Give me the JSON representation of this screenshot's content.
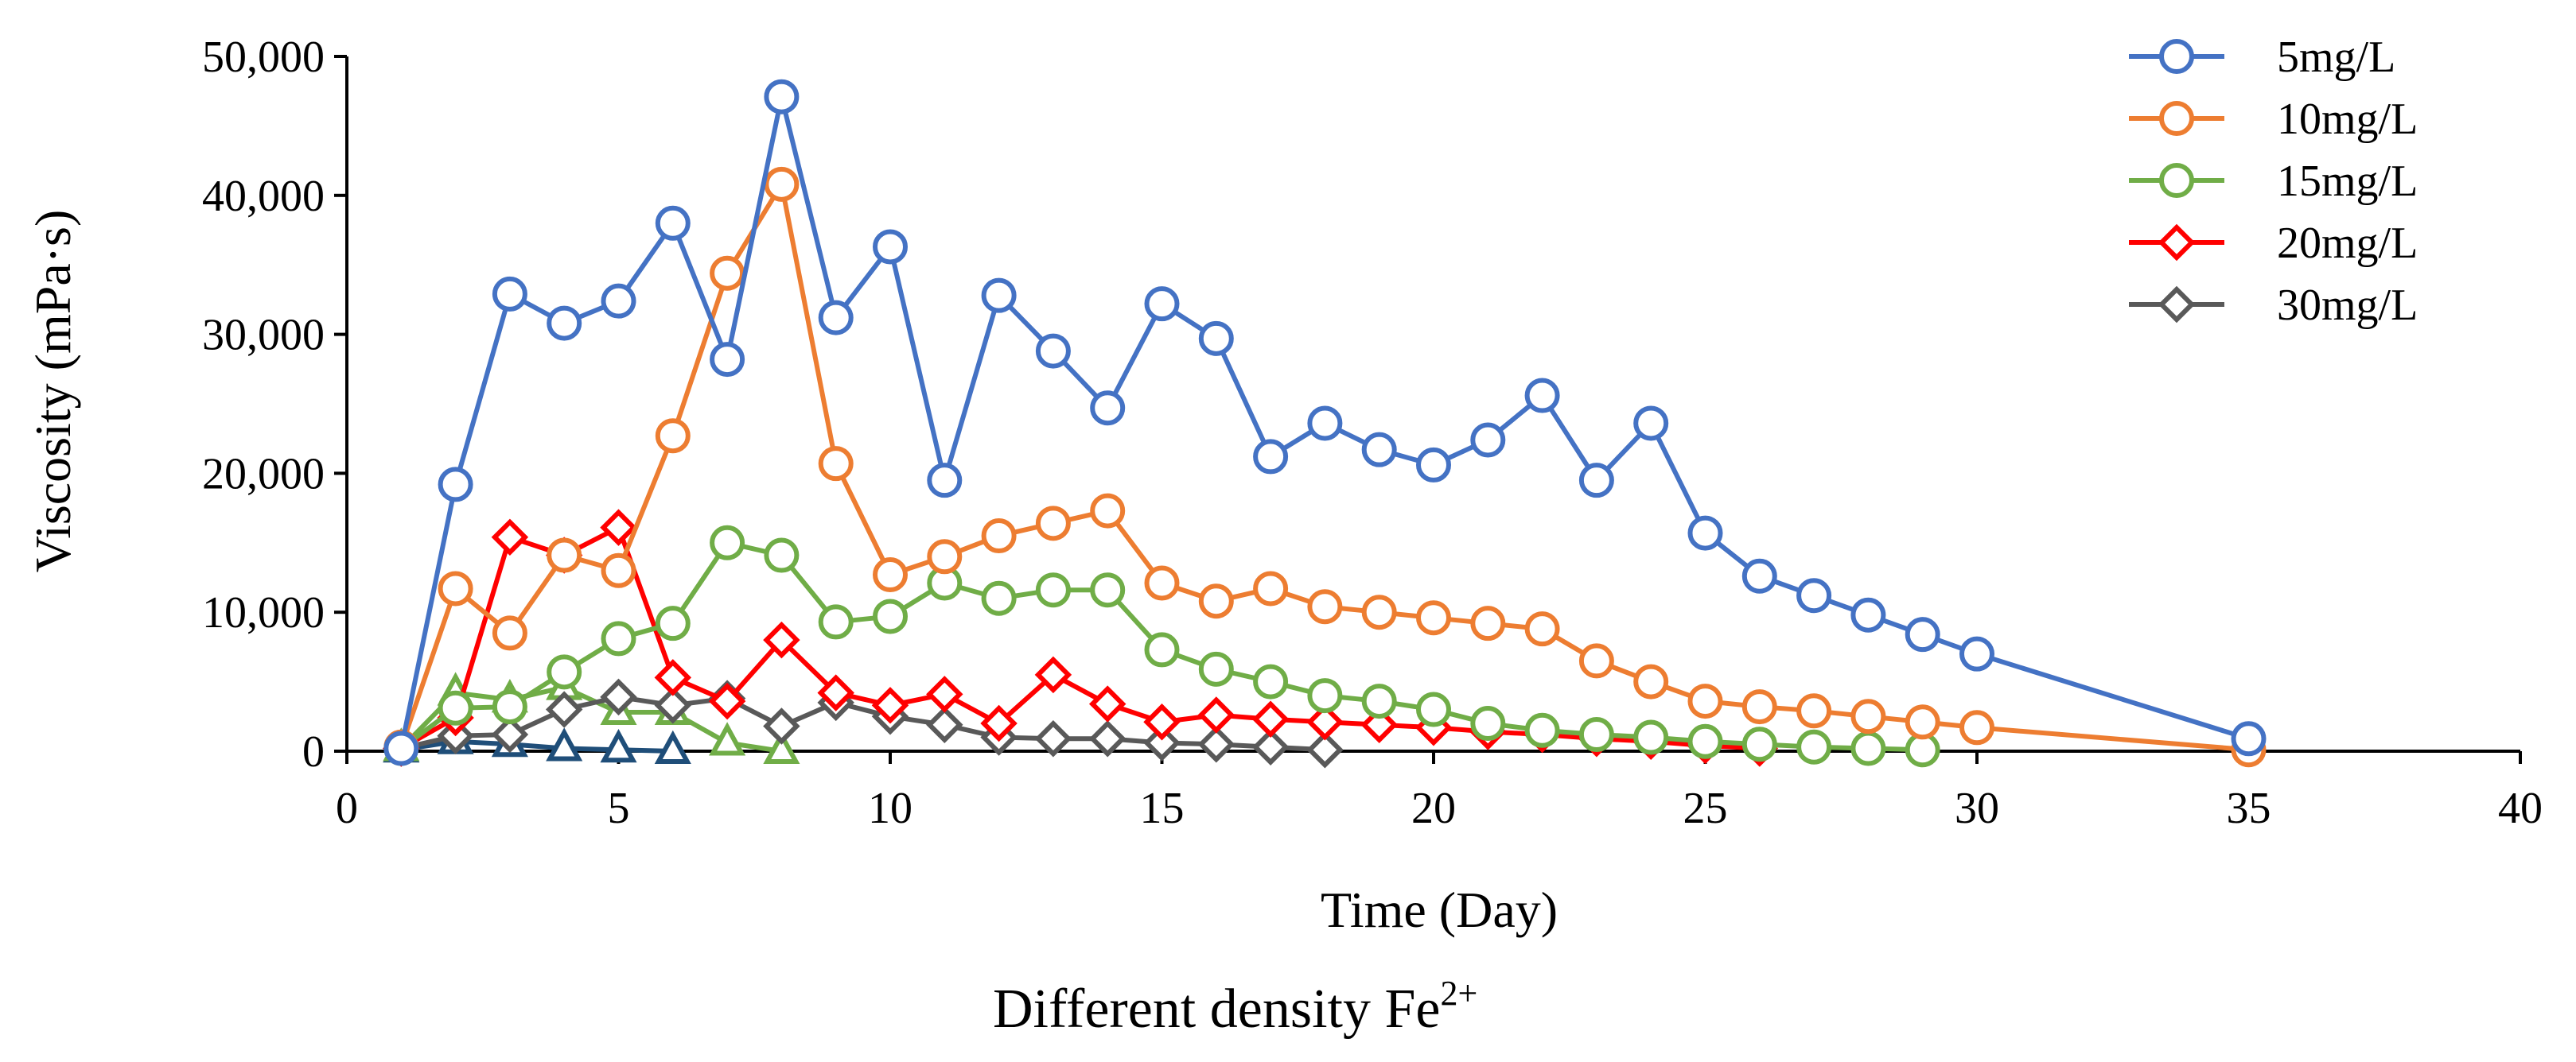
{
  "chart_data": {
    "type": "line",
    "title": "",
    "xlabel": "Time (Day)",
    "ylabel": "Viscosity (mPa·s)",
    "caption": {
      "text": "Different density Fe",
      "superscript": "2+"
    },
    "xlim": [
      0,
      40
    ],
    "ylim": [
      0,
      50000
    ],
    "xticks": [
      0,
      5,
      10,
      15,
      20,
      25,
      30,
      35,
      40
    ],
    "yticks": [
      0,
      10000,
      20000,
      30000,
      40000,
      50000
    ],
    "ytick_labels": [
      "0",
      "10,000",
      "20,000",
      "30,000",
      "40,000",
      "50,000"
    ],
    "legend_position": "top-right",
    "series": [
      {
        "name": "5mg/L",
        "color": "#4472C4",
        "marker": "circle",
        "in_legend": true,
        "x": [
          1,
          2,
          3,
          4,
          5,
          6,
          7,
          8,
          9,
          10,
          11,
          12,
          13,
          14,
          15,
          16,
          17,
          18,
          19,
          20,
          21,
          22,
          23,
          24,
          25,
          26,
          27,
          28,
          29,
          30,
          35
        ],
        "y": [
          200,
          19200,
          32900,
          30800,
          32400,
          38000,
          28200,
          47100,
          31200,
          36300,
          19500,
          32800,
          28800,
          24700,
          32200,
          29700,
          21200,
          23600,
          21700,
          20600,
          22400,
          25600,
          19500,
          23600,
          15700,
          12600,
          11200,
          9800,
          8400,
          7000,
          900
        ]
      },
      {
        "name": "10mg/L",
        "color": "#ED7D31",
        "marker": "circle",
        "in_legend": true,
        "x": [
          1,
          2,
          3,
          4,
          5,
          6,
          7,
          8,
          9,
          10,
          11,
          12,
          13,
          14,
          15,
          16,
          17,
          18,
          19,
          20,
          21,
          22,
          23,
          24,
          25,
          26,
          27,
          28,
          29,
          30,
          35
        ],
        "y": [
          300,
          11700,
          8500,
          14100,
          13000,
          22700,
          34400,
          40800,
          20700,
          12700,
          14000,
          15500,
          16400,
          17300,
          12100,
          10800,
          11700,
          10400,
          10000,
          9600,
          9200,
          8800,
          6500,
          5000,
          3600,
          3200,
          2900,
          2500,
          2100,
          1700,
          100
        ]
      },
      {
        "name": "15mg/L",
        "color": "#70AD47",
        "marker": "circle",
        "in_legend": true,
        "x": [
          1,
          2,
          3,
          4,
          5,
          6,
          7,
          8,
          9,
          10,
          11,
          12,
          13,
          14,
          15,
          16,
          17,
          18,
          19,
          20,
          21,
          22,
          23,
          24,
          25,
          26,
          27,
          28,
          29
        ],
        "y": [
          200,
          3100,
          3200,
          5700,
          8100,
          9200,
          15000,
          14100,
          9300,
          9700,
          12100,
          11000,
          11600,
          11600,
          7300,
          5900,
          5000,
          4000,
          3600,
          3000,
          2000,
          1500,
          1200,
          1000,
          700,
          500,
          300,
          200,
          100
        ]
      },
      {
        "name": "20mg/L",
        "color": "#FF0000",
        "marker": "diamond",
        "in_legend": true,
        "x": [
          1,
          2,
          3,
          4,
          5,
          6,
          7,
          8,
          9,
          10,
          11,
          12,
          13,
          14,
          15,
          16,
          17,
          18,
          19,
          20,
          21,
          22,
          23,
          24,
          25,
          26
        ],
        "y": [
          200,
          2400,
          15400,
          14100,
          16100,
          5300,
          3600,
          8000,
          4200,
          3300,
          4100,
          2000,
          5500,
          3400,
          2100,
          2600,
          2300,
          2100,
          1900,
          1700,
          1400,
          1200,
          900,
          700,
          400,
          200
        ]
      },
      {
        "name": "30mg/L",
        "color": "#595959",
        "marker": "diamond",
        "in_legend": true,
        "x": [
          1,
          2,
          3,
          4,
          5,
          6,
          7,
          8,
          9,
          10,
          11,
          12,
          13,
          14,
          15,
          16,
          17,
          18
        ],
        "y": [
          200,
          1100,
          1200,
          3000,
          3900,
          3300,
          3800,
          1800,
          3500,
          2500,
          1900,
          1000,
          900,
          900,
          600,
          500,
          300,
          100
        ]
      },
      {
        "name": "(green triangles)",
        "color": "#70AD47",
        "marker": "triangle",
        "in_legend": false,
        "x": [
          1,
          2,
          3,
          4,
          5,
          6,
          7,
          8
        ],
        "y": [
          200,
          4200,
          3700,
          4600,
          2800,
          2800,
          600,
          0
        ]
      },
      {
        "name": "(blue triangles)",
        "color": "#1F4E79",
        "marker": "triangle",
        "in_legend": false,
        "x": [
          1,
          2,
          3,
          4,
          5,
          6
        ],
        "y": [
          100,
          700,
          500,
          200,
          100,
          0
        ]
      }
    ]
  }
}
